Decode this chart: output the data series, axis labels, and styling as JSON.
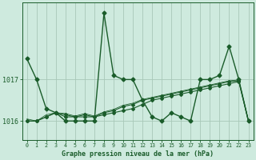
{
  "title": "Graphe pression niveau de la mer (hPa)",
  "bg_color": "#ceeade",
  "plot_bg_color": "#ceeade",
  "line_color": "#1a5c2a",
  "grid_color": "#a8c8b8",
  "hours": [
    0,
    1,
    2,
    3,
    4,
    5,
    6,
    7,
    8,
    9,
    10,
    11,
    12,
    13,
    14,
    15,
    16,
    17,
    18,
    19,
    20,
    21,
    22,
    23
  ],
  "p1": [
    1017.5,
    1017.0,
    1016.3,
    1016.2,
    1016.0,
    1016.0,
    1016.0,
    1016.0,
    1018.6,
    1017.1,
    1017.0,
    1017.0,
    1016.5,
    1016.1,
    1016.0,
    1016.2,
    1016.1,
    1016.0,
    1017.0,
    1017.0,
    1017.1,
    1017.8,
    1017.0,
    1016.0
  ],
  "p2": [
    1016.0,
    1016.0,
    1016.1,
    1016.2,
    1016.1,
    1016.1,
    1016.1,
    1016.1,
    1016.15,
    1016.2,
    1016.25,
    1016.3,
    1016.4,
    1016.5,
    1016.55,
    1016.6,
    1016.65,
    1016.7,
    1016.75,
    1016.8,
    1016.85,
    1016.9,
    1016.95,
    1016.0
  ],
  "p3": [
    1016.0,
    1016.0,
    1016.1,
    1016.2,
    1016.15,
    1016.1,
    1016.15,
    1016.1,
    1016.2,
    1016.25,
    1016.35,
    1016.4,
    1016.5,
    1016.55,
    1016.6,
    1016.65,
    1016.7,
    1016.75,
    1016.8,
    1016.85,
    1016.9,
    1016.95,
    1016.97,
    1016.0
  ],
  "p4": [
    1016.05,
    1016.0,
    1016.15,
    1016.2,
    1016.18,
    1016.12,
    1016.18,
    1016.12,
    1016.22,
    1016.28,
    1016.38,
    1016.43,
    1016.52,
    1016.57,
    1016.62,
    1016.67,
    1016.72,
    1016.77,
    1016.82,
    1016.87,
    1016.92,
    1016.97,
    1016.99,
    1016.02
  ],
  "ylim_lo": 1015.55,
  "ylim_hi": 1018.85,
  "yticks": [
    1016,
    1017
  ],
  "marker": "D",
  "ms1": 2.5,
  "ms2": 2.0,
  "lw1": 1.0,
  "lw2": 0.8
}
